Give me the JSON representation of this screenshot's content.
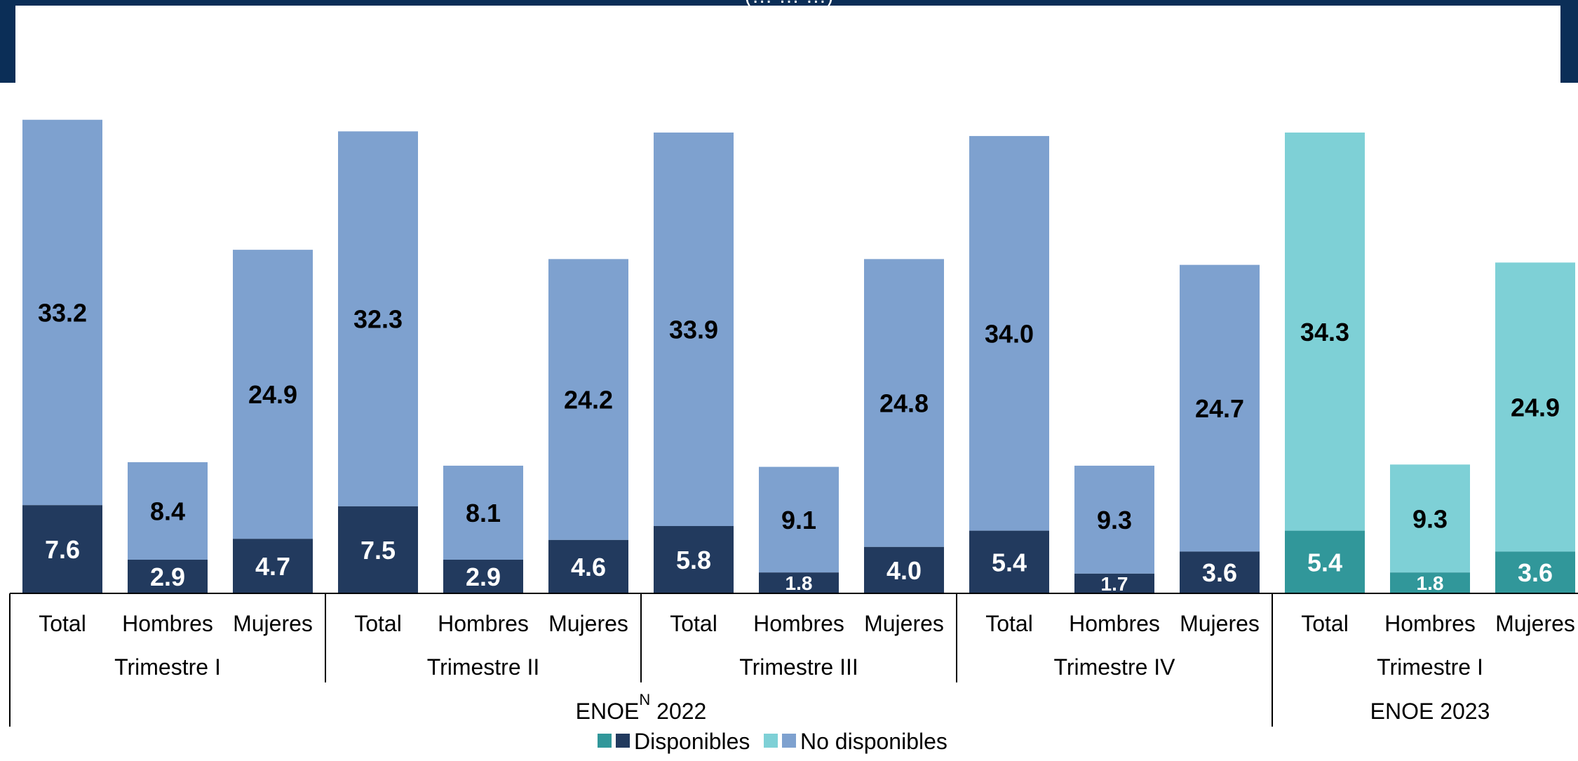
{
  "header": {
    "title": "(… … …)"
  },
  "colors": {
    "dark_2022": "#223a5e",
    "light_2022": "#7ea1cf",
    "dark_2023": "#31979a",
    "light_2023": "#7ed0d6"
  },
  "chart_data": {
    "type": "bar",
    "stacked": true,
    "categories": [
      "Total",
      "Hombres",
      "Mujeres",
      "Total",
      "Hombres",
      "Mujeres",
      "Total",
      "Hombres",
      "Mujeres",
      "Total",
      "Hombres",
      "Mujeres",
      "Total",
      "Hombres",
      "Mujeres"
    ],
    "series": [
      {
        "name": "Disponibles",
        "values": [
          7.6,
          2.9,
          4.7,
          7.5,
          2.9,
          4.6,
          5.8,
          1.8,
          4.0,
          5.4,
          1.7,
          3.6,
          5.4,
          1.8,
          3.6
        ]
      },
      {
        "name": "No disponibles",
        "values": [
          33.2,
          8.4,
          24.9,
          32.3,
          8.1,
          24.2,
          33.9,
          9.1,
          24.8,
          34.0,
          9.3,
          24.7,
          34.3,
          9.3,
          24.9
        ]
      }
    ],
    "value_labels": [
      "7.6",
      "2.9",
      "4.7",
      "7.5",
      "2.9",
      "4.6",
      "5.8",
      "1.8",
      "4.0",
      "5.4",
      "1.7",
      "3.6",
      "5.4",
      "1.8",
      "3.6",
      "33.2",
      "8.4",
      "24.9",
      "32.3",
      "8.1",
      "24.2",
      "33.9",
      "9.1",
      "24.8",
      "34.0",
      "9.3",
      "24.7",
      "34.3",
      "9.3",
      "24.9"
    ],
    "quarter_groups": [
      {
        "label": "Trimestre I",
        "bars": 3
      },
      {
        "label": "Trimestre II",
        "bars": 3
      },
      {
        "label": "Trimestre III",
        "bars": 3
      },
      {
        "label": "Trimestre IV",
        "bars": 3
      },
      {
        "label": "Trimestre I",
        "bars": 3
      }
    ],
    "year_groups": [
      {
        "label": "ENOE",
        "superscript": "N",
        "suffix": " 2022",
        "bars": 12
      },
      {
        "label": "ENOE 2023",
        "superscript": "",
        "suffix": "",
        "bars": 3
      }
    ],
    "legend": {
      "position": "bottom",
      "items": [
        {
          "label": "Disponibles",
          "swatches": [
            "#31979a",
            "#223a5e"
          ]
        },
        {
          "label": "No disponibles",
          "swatches": [
            "#7ed0d6",
            "#7ea1cf"
          ]
        }
      ]
    },
    "grid": false
  }
}
